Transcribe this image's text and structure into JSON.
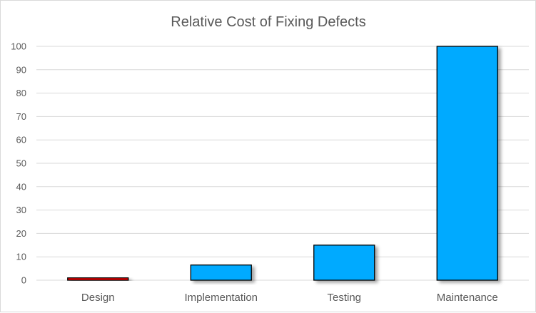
{
  "chart_data": {
    "type": "bar",
    "title": "Relative Cost of Fixing Defects",
    "xlabel": "",
    "ylabel": "",
    "categories": [
      "Design",
      "Implementation",
      "Testing",
      "Maintenance"
    ],
    "values": [
      1,
      6.5,
      15,
      100
    ],
    "colors": [
      "#ff0000",
      "#00aaff",
      "#00aaff",
      "#00aaff"
    ],
    "ylim": [
      0,
      100
    ],
    "yticks": [
      0,
      10,
      20,
      30,
      40,
      50,
      60,
      70,
      80,
      90,
      100
    ],
    "grid": true,
    "legend": "none"
  }
}
